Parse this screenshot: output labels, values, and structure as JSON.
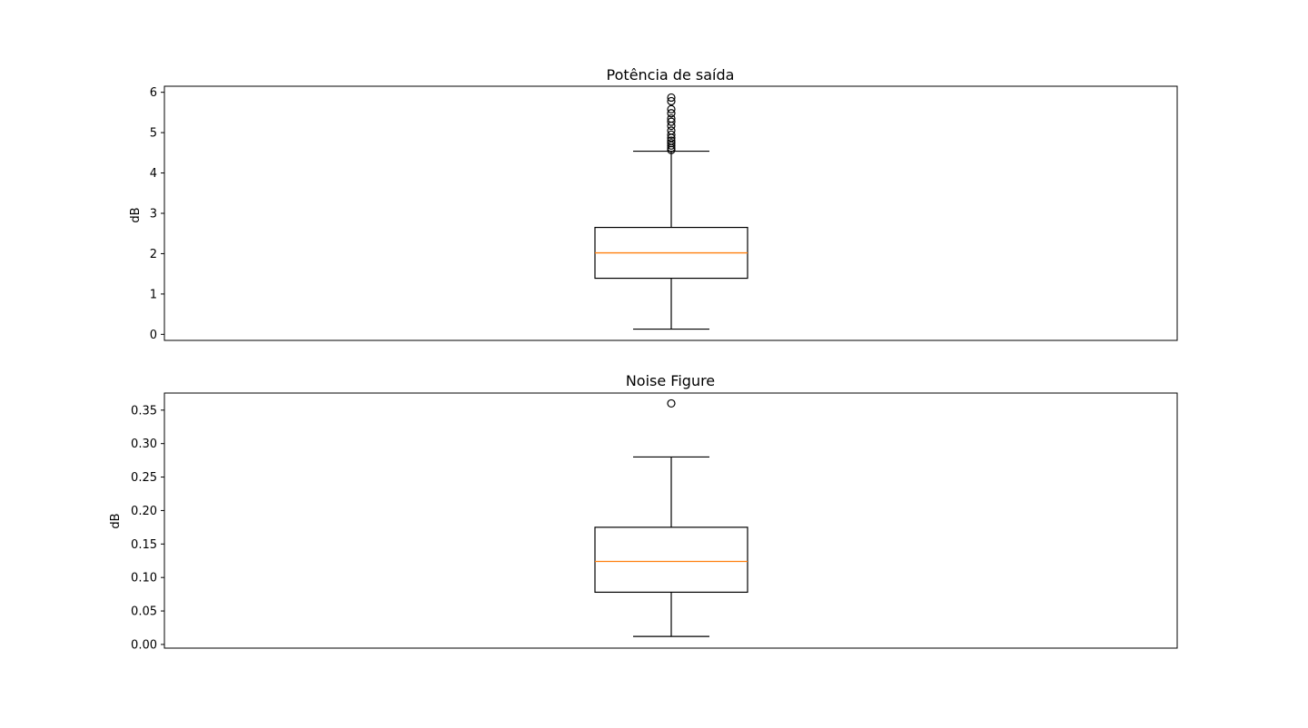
{
  "chart_data": [
    {
      "type": "boxplot",
      "title": "Potência de saída",
      "xlabel": "",
      "ylabel": "dB",
      "ylim": [
        -0.15,
        6.15
      ],
      "yticks": [
        0,
        1,
        2,
        3,
        4,
        5,
        6
      ],
      "ytick_labels": [
        "0",
        "1",
        "2",
        "3",
        "4",
        "5",
        "6"
      ],
      "grid": false,
      "box": {
        "whisker_low": 0.13,
        "q1": 1.39,
        "median": 2.02,
        "q3": 2.65,
        "whisker_high": 4.54,
        "outliers": [
          4.57,
          4.62,
          4.68,
          4.74,
          4.8,
          4.87,
          4.95,
          5.05,
          5.17,
          5.27,
          5.35,
          5.48,
          5.58,
          5.78,
          5.87
        ]
      },
      "colors": {
        "box": "#000000",
        "median": "#ff7f0e",
        "outlier": "#000000"
      }
    },
    {
      "type": "boxplot",
      "title": "Noise Figure",
      "xlabel": "",
      "ylabel": "dB",
      "ylim": [
        -0.0055,
        0.3755
      ],
      "yticks": [
        0.0,
        0.05,
        0.1,
        0.15,
        0.2,
        0.25,
        0.3,
        0.35
      ],
      "ytick_labels": [
        "0.00",
        "0.05",
        "0.10",
        "0.15",
        "0.20",
        "0.25",
        "0.30",
        "0.35"
      ],
      "grid": false,
      "box": {
        "whisker_low": 0.012,
        "q1": 0.078,
        "median": 0.124,
        "q3": 0.175,
        "whisker_high": 0.28,
        "outliers": [
          0.36
        ]
      },
      "colors": {
        "box": "#000000",
        "median": "#ff7f0e",
        "outlier": "#000000"
      }
    }
  ]
}
